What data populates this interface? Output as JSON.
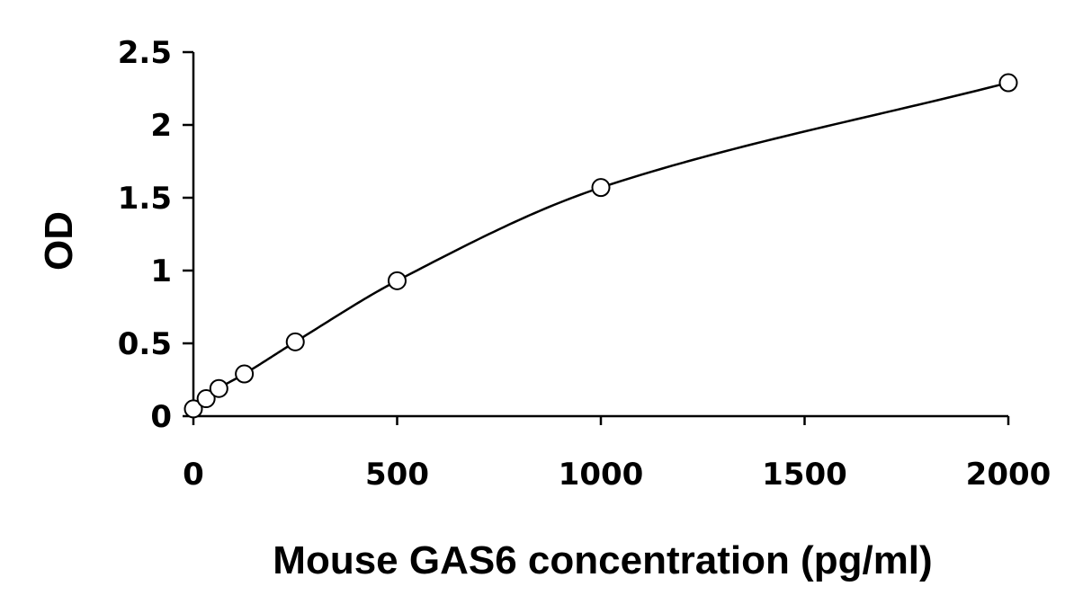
{
  "chart_data": {
    "type": "scatter",
    "title": "",
    "xlabel": "Mouse GAS6 concentration (pg/ml)",
    "ylabel": "OD",
    "xlim": [
      0,
      2000
    ],
    "ylim": [
      0,
      2.5
    ],
    "xticks": [
      "0",
      "500",
      "1000",
      "1500",
      "2000"
    ],
    "yticks": [
      "0",
      "0.5",
      "1",
      "1.5",
      "2",
      "2.5"
    ],
    "grid": false,
    "legend": "none",
    "series": [
      {
        "x": [
          0,
          31.25,
          62.5,
          125,
          250,
          500,
          1000,
          2000
        ],
        "y": [
          0.05,
          0.12,
          0.19,
          0.29,
          0.51,
          0.93,
          1.57,
          2.29
        ],
        "marker": "open-circle",
        "fit_curve": true
      }
    ]
  }
}
